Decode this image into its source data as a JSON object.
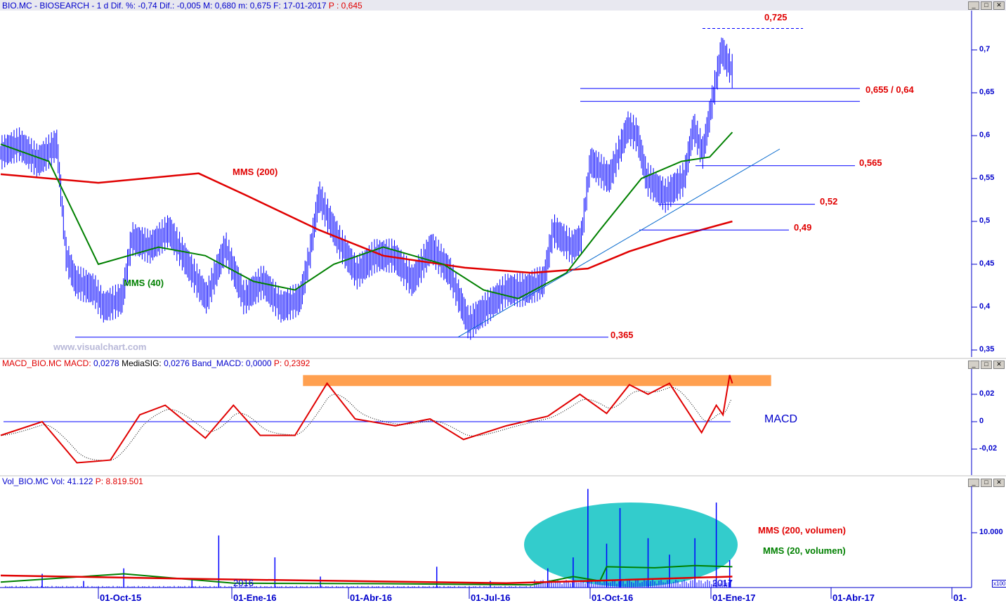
{
  "header": {
    "symbol": "BIO.MC - BIOSEARCH - 1 d",
    "info": "Dif. %: -0,74 Dif.: -0,005 M: 0,680 m: 0,675 F: 17-01-2017",
    "p": "P : 0,645"
  },
  "macd_header": {
    "name": "MACD_BIO.MC MACD:",
    "macd": "0,0278",
    "sig_label": "MediaSIG:",
    "sig": "0,0276",
    "band": "Band_MACD: 0,0000",
    "p": "P: 0,2392"
  },
  "vol_header": {
    "name": "Vol_BIO.MC Vol: 41.122",
    "p": "P: 8.819.501"
  },
  "watermark": "www.visualchart.com",
  "labels": {
    "l725": "0,725",
    "l655": "0,655 / 0,64",
    "l565": "0,565",
    "l52": "0,52",
    "l49": "0,49",
    "l365": "0,365",
    "mms200": "MMS (200)",
    "mms40": "MMS (40)",
    "macd": "MACD",
    "vmms200": "MMS (200, volumen)",
    "vmms20": "MMS (20, volumen)",
    "y2016": "2016",
    "y2017": "2017",
    "x100": "x100"
  },
  "colors": {
    "price": "#0000ff",
    "mms200": "#e00000",
    "mms40": "#008000",
    "macd": "#e00000",
    "band": "#ffa050",
    "ellipse": "#33cccc"
  },
  "chart_data": [
    {
      "type": "bar",
      "title": "BIO.MC - BIOSEARCH",
      "ylim": [
        0.35,
        0.73
      ],
      "yticks": [
        "0,35",
        "0,4",
        "0,45",
        "0,5",
        "0,55",
        "0,6",
        "0,65",
        "0,7"
      ],
      "xticks": [
        "01-Oct-15",
        "01-Ene-16",
        "01-Abr-16",
        "01-Jul-16",
        "01-Oct-16",
        "01-Ene-17",
        "01-Abr-17",
        "01-"
      ],
      "close": [
        [
          "2015-07-20",
          0.58
        ],
        [
          "2015-08-03",
          0.59
        ],
        [
          "2015-08-17",
          0.57
        ],
        [
          "2015-08-31",
          0.59
        ],
        [
          "2015-09-07",
          0.46
        ],
        [
          "2015-09-14",
          0.43
        ],
        [
          "2015-09-28",
          0.42
        ],
        [
          "2015-10-05",
          0.4
        ],
        [
          "2015-10-19",
          0.41
        ],
        [
          "2015-10-26",
          0.48
        ],
        [
          "2015-11-09",
          0.47
        ],
        [
          "2015-11-23",
          0.49
        ],
        [
          "2015-12-07",
          0.45
        ],
        [
          "2015-12-21",
          0.41
        ],
        [
          "2016-01-04",
          0.47
        ],
        [
          "2016-01-18",
          0.41
        ],
        [
          "2016-02-01",
          0.43
        ],
        [
          "2016-02-15",
          0.4
        ],
        [
          "2016-02-29",
          0.41
        ],
        [
          "2016-03-07",
          0.46
        ],
        [
          "2016-03-14",
          0.53
        ],
        [
          "2016-03-28",
          0.48
        ],
        [
          "2016-04-11",
          0.44
        ],
        [
          "2016-04-25",
          0.46
        ],
        [
          "2016-05-09",
          0.46
        ],
        [
          "2016-05-23",
          0.43
        ],
        [
          "2016-06-06",
          0.47
        ],
        [
          "2016-06-20",
          0.44
        ],
        [
          "2016-07-04",
          0.38
        ],
        [
          "2016-07-18",
          0.4
        ],
        [
          "2016-08-01",
          0.42
        ],
        [
          "2016-08-15",
          0.42
        ],
        [
          "2016-08-29",
          0.43
        ],
        [
          "2016-09-05",
          0.49
        ],
        [
          "2016-09-19",
          0.47
        ],
        [
          "2016-09-26",
          0.48
        ],
        [
          "2016-10-03",
          0.57
        ],
        [
          "2016-10-17",
          0.55
        ],
        [
          "2016-10-31",
          0.61
        ],
        [
          "2016-11-07",
          0.6
        ],
        [
          "2016-11-14",
          0.55
        ],
        [
          "2016-11-28",
          0.53
        ],
        [
          "2016-12-12",
          0.55
        ],
        [
          "2016-12-19",
          0.61
        ],
        [
          "2016-12-26",
          0.58
        ],
        [
          "2017-01-02",
          0.64
        ],
        [
          "2017-01-09",
          0.7
        ],
        [
          "2017-01-17",
          0.675
        ]
      ],
      "mms200": [
        [
          "2015-07-20",
          0.555
        ],
        [
          "2015-10-01",
          0.545
        ],
        [
          "2015-12-15",
          0.556
        ],
        [
          "2016-01-20",
          0.53
        ],
        [
          "2016-03-14",
          0.49
        ],
        [
          "2016-05-01",
          0.46
        ],
        [
          "2016-07-01",
          0.446
        ],
        [
          "2016-08-20",
          0.44
        ],
        [
          "2016-10-01",
          0.445
        ],
        [
          "2016-11-01",
          0.465
        ],
        [
          "2016-12-01",
          0.48
        ],
        [
          "2017-01-17",
          0.5
        ]
      ],
      "mms40": [
        [
          "2015-07-20",
          0.59
        ],
        [
          "2015-08-25",
          0.57
        ],
        [
          "2015-10-01",
          0.45
        ],
        [
          "2015-11-15",
          0.47
        ],
        [
          "2015-12-20",
          0.46
        ],
        [
          "2016-01-25",
          0.43
        ],
        [
          "2016-02-25",
          0.42
        ],
        [
          "2016-03-25",
          0.45
        ],
        [
          "2016-05-01",
          0.47
        ],
        [
          "2016-06-15",
          0.45
        ],
        [
          "2016-07-15",
          0.42
        ],
        [
          "2016-08-10",
          0.41
        ],
        [
          "2016-09-15",
          0.44
        ],
        [
          "2016-10-10",
          0.49
        ],
        [
          "2016-11-10",
          0.55
        ],
        [
          "2016-12-10",
          0.57
        ],
        [
          "2016-12-31",
          0.575
        ],
        [
          "2017-01-17",
          0.604
        ]
      ],
      "levels": [
        0.725,
        0.655,
        0.64,
        0.565,
        0.52,
        0.49,
        0.365
      ]
    },
    {
      "type": "line",
      "title": "MACD",
      "ylim": [
        -0.035,
        0.038
      ],
      "yticks": [
        "0,02",
        "0",
        "-0,02"
      ],
      "macd": [
        [
          "2015-07-20",
          -0.01
        ],
        [
          "2015-08-20",
          0
        ],
        [
          "2015-09-15",
          -0.03
        ],
        [
          "2015-10-10",
          -0.028
        ],
        [
          "2015-11-01",
          0.005
        ],
        [
          "2015-11-20",
          0.012
        ],
        [
          "2015-12-20",
          -0.012
        ],
        [
          "2016-01-10",
          0.012
        ],
        [
          "2016-01-30",
          -0.01
        ],
        [
          "2016-02-25",
          -0.01
        ],
        [
          "2016-03-20",
          0.028
        ],
        [
          "2016-04-10",
          0.002
        ],
        [
          "2016-05-10",
          -0.003
        ],
        [
          "2016-06-05",
          0.002
        ],
        [
          "2016-06-30",
          -0.013
        ],
        [
          "2016-08-01",
          -0.003
        ],
        [
          "2016-09-01",
          0.004
        ],
        [
          "2016-09-25",
          0.02
        ],
        [
          "2016-10-15",
          0.006
        ],
        [
          "2016-11-01",
          0.027
        ],
        [
          "2016-11-15",
          0.02
        ],
        [
          "2016-12-01",
          0.028
        ],
        [
          "2016-12-25",
          -0.008
        ],
        [
          "2017-01-05",
          0.012
        ],
        [
          "2017-01-10",
          0.005
        ],
        [
          "2017-01-15",
          0.034
        ],
        [
          "2017-01-17",
          0.028
        ]
      ],
      "band": {
        "from": "2016-03-02",
        "to": "2017-02-15",
        "low": 0.026,
        "high": 0.034
      }
    },
    {
      "type": "bar",
      "title": "Volume",
      "unit": "x100",
      "ylim": [
        0,
        18000
      ],
      "yticks": [
        "10.000"
      ],
      "volume": [
        [
          "2015-08-20",
          2500
        ],
        [
          "2015-09-20",
          1200
        ],
        [
          "2015-10-20",
          3500
        ],
        [
          "2015-12-10",
          1500
        ],
        [
          "2015-12-30",
          9500
        ],
        [
          "2016-02-10",
          5500
        ],
        [
          "2016-03-15",
          2000
        ],
        [
          "2016-06-10",
          3800
        ],
        [
          "2016-07-20",
          1200
        ],
        [
          "2016-09-01",
          3500
        ],
        [
          "2016-09-20",
          5500
        ],
        [
          "2016-10-01",
          18000
        ],
        [
          "2016-10-15",
          8000
        ],
        [
          "2016-10-25",
          14500
        ],
        [
          "2016-11-15",
          9000
        ],
        [
          "2016-12-01",
          6000
        ],
        [
          "2016-12-20",
          9000
        ],
        [
          "2017-01-05",
          15500
        ],
        [
          "2017-01-15",
          5000
        ]
      ],
      "mms200": [
        [
          "2015-07-20",
          2200
        ],
        [
          "2016-01-01",
          1500
        ],
        [
          "2016-08-01",
          800
        ],
        [
          "2016-10-01",
          1200
        ],
        [
          "2017-01-17",
          2000
        ]
      ],
      "mms20": [
        [
          "2015-07-20",
          1000
        ],
        [
          "2015-10-20",
          2500
        ],
        [
          "2016-01-10",
          800
        ],
        [
          "2016-05-01",
          700
        ],
        [
          "2016-08-20",
          500
        ],
        [
          "2016-09-20",
          2000
        ],
        [
          "2016-10-10",
          1200
        ],
        [
          "2016-10-15",
          3800
        ],
        [
          "2016-11-20",
          3600
        ],
        [
          "2016-12-20",
          4000
        ],
        [
          "2017-01-17",
          3800
        ]
      ]
    }
  ]
}
